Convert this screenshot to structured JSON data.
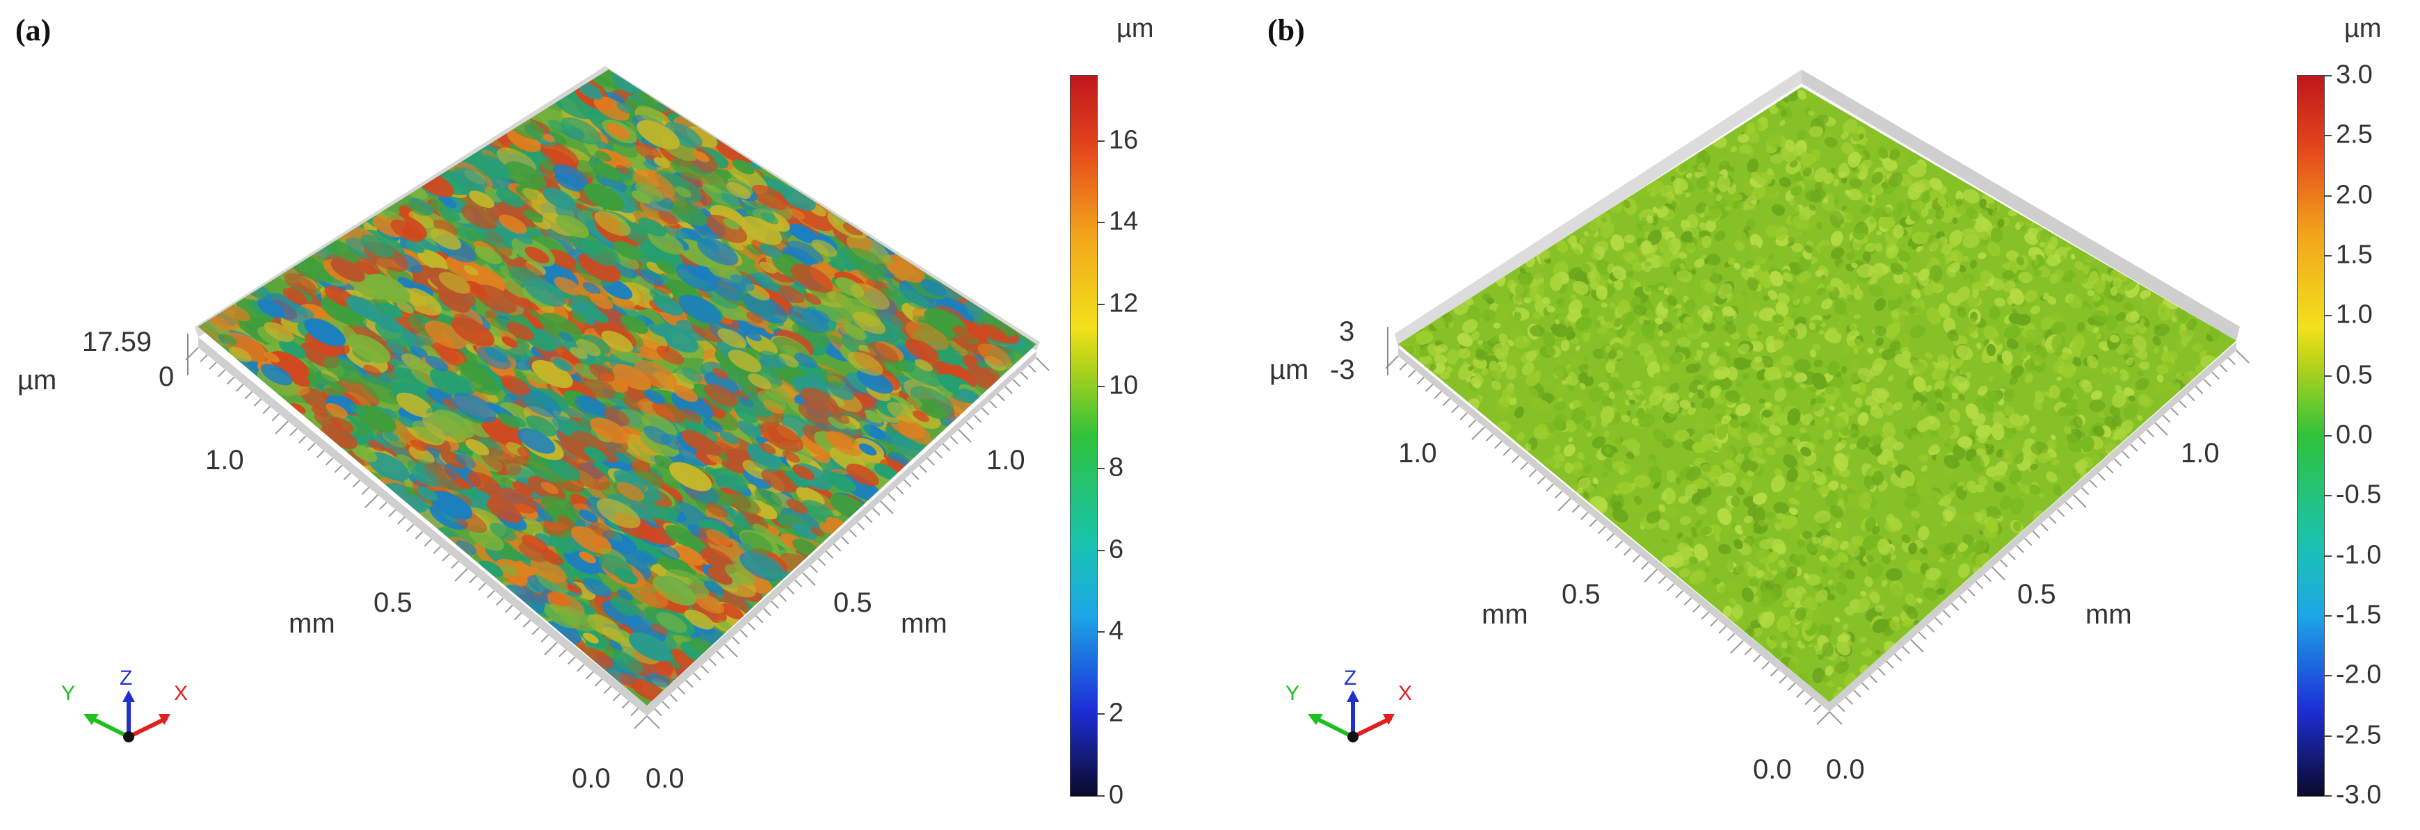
{
  "panels": [
    {
      "id": "a",
      "label": "(a)",
      "z_max_label": "17.59",
      "z_min_label": "0",
      "z_unit": "µm",
      "x_axis": {
        "start": "0.0",
        "mid": "0.5",
        "end": "1.0",
        "unit": "mm"
      },
      "y_axis": {
        "start": "0.0",
        "mid": "0.5",
        "end": "1.0",
        "unit": "mm"
      },
      "colorbar": {
        "unit": "µm",
        "min": 0,
        "max": 17.59,
        "ticks": [
          "16",
          "14",
          "12",
          "10",
          "8",
          "6",
          "4",
          "2",
          "0"
        ],
        "tick_values": [
          16,
          14,
          12,
          10,
          8,
          6,
          4,
          2,
          0
        ]
      },
      "surface_style": "rough"
    },
    {
      "id": "b",
      "label": "(b)",
      "z_max_label": "3",
      "z_min_label": "-3",
      "z_unit": "µm",
      "x_axis": {
        "start": "0.0",
        "mid": "0.5",
        "end": "1.0",
        "unit": "mm"
      },
      "y_axis": {
        "start": "0.0",
        "mid": "0.5",
        "end": "1.0",
        "unit": "mm"
      },
      "colorbar": {
        "unit": "µm",
        "min": -3.0,
        "max": 3.0,
        "ticks": [
          "3.0",
          "2.5",
          "2.0",
          "1.5",
          "1.0",
          "0.5",
          "0.0",
          "-0.5",
          "-1.0",
          "-1.5",
          "-2.0",
          "-2.5",
          "-3.0"
        ],
        "tick_values": [
          3.0,
          2.5,
          2.0,
          1.5,
          1.0,
          0.5,
          0.0,
          -0.5,
          -1.0,
          -1.5,
          -2.0,
          -2.5,
          -3.0
        ]
      },
      "surface_style": "smooth"
    }
  ],
  "triad": {
    "x": "X",
    "y": "Y",
    "z": "Z"
  },
  "colors": {
    "x_axis": "#e02020",
    "y_axis": "#1fbf1f",
    "z_axis": "#2030d0"
  }
}
